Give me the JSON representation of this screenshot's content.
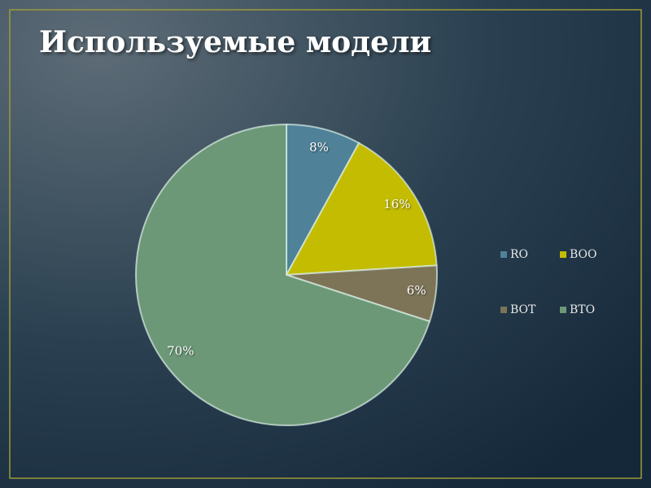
{
  "chart_data": {
    "type": "pie",
    "title": "Используемые модели",
    "categories": [
      "RO",
      "BOO",
      "BOT",
      "BTO"
    ],
    "values": [
      8,
      16,
      6,
      70
    ],
    "value_labels": [
      "8%",
      "16%",
      "6%",
      "70%"
    ],
    "colors": [
      "#4f8298",
      "#c4bc00",
      "#7d7458",
      "#6c9878"
    ],
    "legend": "right"
  }
}
